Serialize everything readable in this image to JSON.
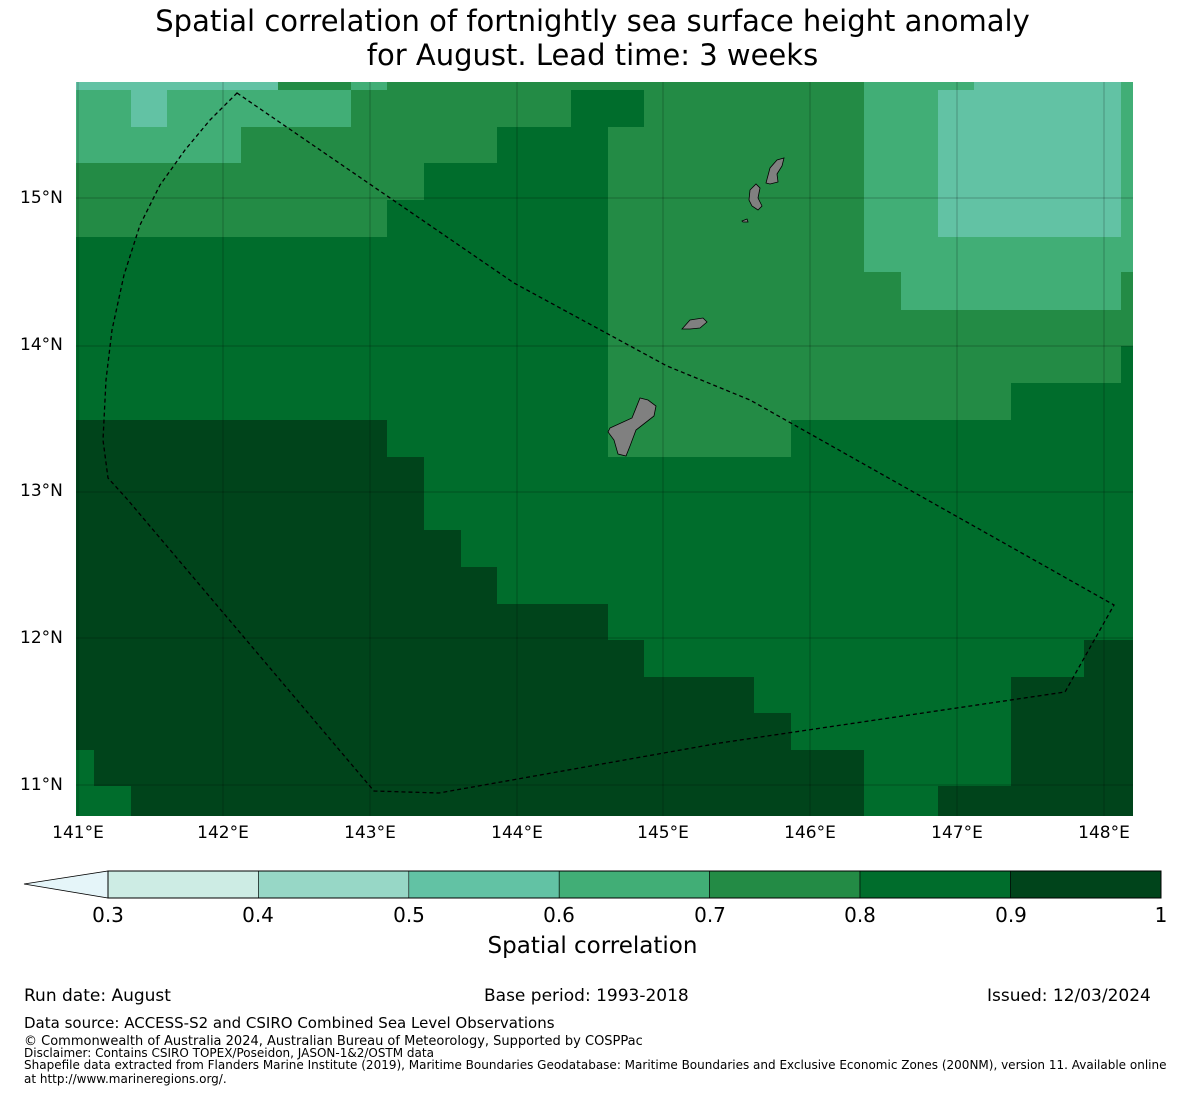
{
  "title": {
    "line1": "Spatial correlation of fortnightly sea surface height anomaly",
    "line2": "for August. Lead time: 3 weeks"
  },
  "map": {
    "lon_range": [
      141.0,
      148.2
    ],
    "lat_range": [
      10.8,
      15.8
    ],
    "lat_ticks": [
      {
        "value": 15,
        "label": "15°N"
      },
      {
        "value": 14,
        "label": "14°N"
      },
      {
        "value": 13,
        "label": "13°N"
      },
      {
        "value": 12,
        "label": "12°N"
      },
      {
        "value": 11,
        "label": "11°N"
      }
    ],
    "lon_ticks": [
      {
        "value": 141,
        "label": "141°E"
      },
      {
        "value": 142,
        "label": "142°E"
      },
      {
        "value": 143,
        "label": "143°E"
      },
      {
        "value": 144,
        "label": "144°E"
      },
      {
        "value": 145,
        "label": "145°E"
      },
      {
        "value": 146,
        "label": "146°E"
      },
      {
        "value": 147,
        "label": "147°E"
      },
      {
        "value": 148,
        "label": "148°E"
      }
    ],
    "grid": true,
    "land_color": "#808080",
    "eez_boundary": "dashed black line",
    "islands": [
      "Guam",
      "Rota",
      "Tinian",
      "Saipan"
    ]
  },
  "chart_data": {
    "type": "heatmap",
    "title": "Spatial correlation of fortnightly sea surface height anomaly for August. Lead time: 3 weeks",
    "xlabel": "",
    "ylabel": "",
    "colorbar": {
      "label": "Spatial correlation",
      "ticks": [
        "0.3",
        "0.4",
        "0.5",
        "0.6",
        "0.7",
        "0.8",
        "0.9",
        "1"
      ],
      "bins": [
        {
          "range": [
            0.3,
            0.4
          ],
          "color": "#cdece4"
        },
        {
          "range": [
            0.4,
            0.5
          ],
          "color": "#97d7c6"
        },
        {
          "range": [
            0.5,
            0.6
          ],
          "color": "#62c2a4"
        },
        {
          "range": [
            0.6,
            0.7
          ],
          "color": "#41ae76"
        },
        {
          "range": [
            0.7,
            0.8
          ],
          "color": "#238b45"
        },
        {
          "range": [
            0.8,
            0.9
          ],
          "color": "#006d2c"
        },
        {
          "range": [
            0.9,
            1.0
          ],
          "color": "#00441b"
        }
      ],
      "extend": "min",
      "under_color": "#e5f5f9"
    },
    "regions": [
      {
        "value_bin": [
          0.9,
          1.0
        ],
        "description": "southwest, west of 143.5°E south of 13.5°N; southeast corner east of 147.4°E south of 11.7°N"
      },
      {
        "value_bin": [
          0.8,
          0.9
        ],
        "description": "central band 13.3°N–14.8°N west of 144.4°E; east of Guam south of 13.5°N"
      },
      {
        "value_bin": [
          0.7,
          0.8
        ],
        "description": "north-central and around Saipan/Tinian/Guam; northwest"
      },
      {
        "value_bin": [
          0.6,
          0.7
        ],
        "description": "northwest corner; northeast around 147°E–148°E north of 14.3°N"
      },
      {
        "value_bin": [
          0.5,
          0.6
        ],
        "description": "northeast box 147°E–148.1°E, 14.8°N–15.8°N; small patch near 141.5°E 15.7°N"
      }
    ]
  },
  "footer": {
    "run_date": "Run date: August",
    "base_period": "Base period: 1993-2018",
    "issued": "Issued: 12/03/2024",
    "data_source": "Data source: ACCESS-S2 and CSIRO Combined Sea Level Observations",
    "copyright": "© Commonwealth of Australia 2024, Australian Bureau of Meteorology, Supported by COSPPac",
    "disclaimer": "Disclaimer: Contains CSIRO TOPEX/Poseidon, JASON-1&2/OSTM data",
    "shapefile_1": "Shapefile data extracted from Flanders Marine Institute (2019), Maritime Boundaries Geodatabase: Maritime Boundaries and Exclusive Economic Zones (200NM), version 11. Available online",
    "shapefile_2": "at http://www.marineregions.org/."
  }
}
